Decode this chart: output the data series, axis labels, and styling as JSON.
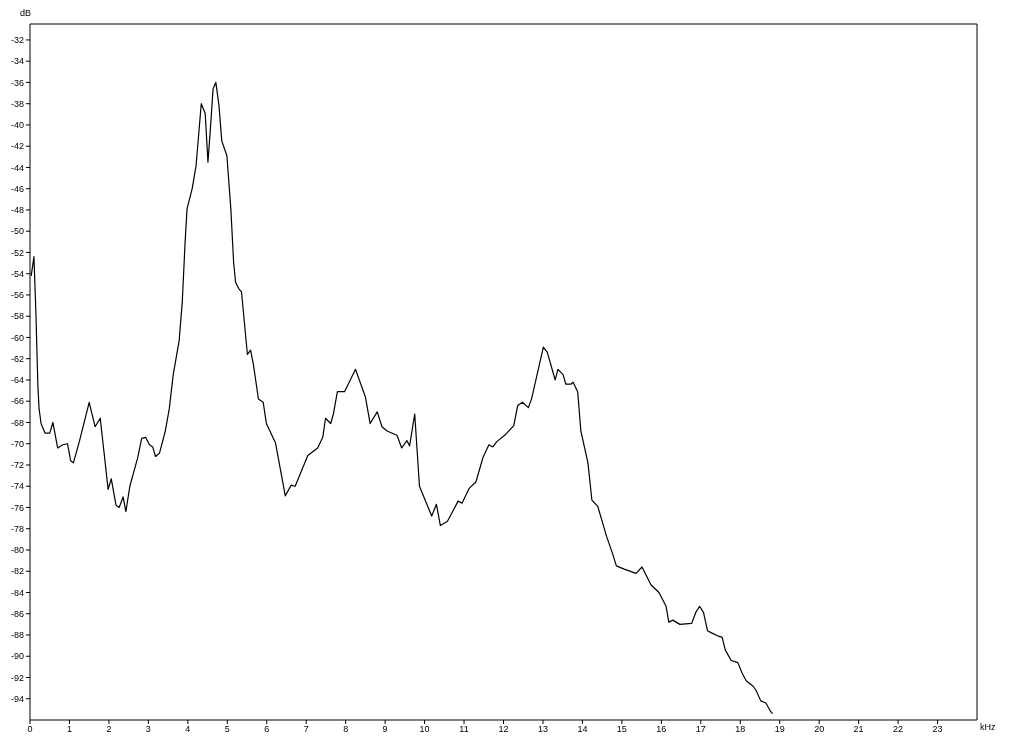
{
  "chart_data": {
    "type": "line",
    "xlabel": "kHz",
    "ylabel": "dB",
    "xlim": [
      0,
      24
    ],
    "xticks": [
      0,
      1,
      2,
      3,
      4,
      5,
      6,
      7,
      8,
      9,
      10,
      11,
      12,
      13,
      14,
      15,
      16,
      17,
      18,
      19,
      20,
      21,
      22,
      23
    ],
    "ylim": [
      -96,
      -30.5
    ],
    "yticks": [
      -94,
      -92,
      -90,
      -88,
      -86,
      -84,
      -82,
      -80,
      -78,
      -76,
      -74,
      -72,
      -70,
      -68,
      -66,
      -64,
      -62,
      -60,
      -58,
      -56,
      -54,
      -52,
      -50,
      -48,
      -46,
      -44,
      -42,
      -40,
      -38,
      -36,
      -34,
      -32
    ],
    "marker": "none",
    "line_style": "solid",
    "x": [
      0.03,
      0.1,
      0.15,
      0.2,
      0.23,
      0.28,
      0.38,
      0.5,
      0.58,
      0.7,
      0.83,
      0.95,
      1.03,
      1.1,
      1.25,
      1.5,
      1.65,
      1.78,
      1.98,
      2.06,
      2.18,
      2.26,
      2.36,
      2.43,
      2.53,
      2.73,
      2.83,
      2.93,
      3.03,
      3.11,
      3.18,
      3.28,
      3.43,
      3.53,
      3.63,
      3.78,
      3.86,
      3.93,
      3.98,
      4.11,
      4.21,
      4.34,
      4.44,
      4.51,
      4.56,
      4.64,
      4.71,
      4.79,
      4.86,
      4.99,
      5.09,
      5.16,
      5.21,
      5.29,
      5.36,
      5.51,
      5.59,
      5.66,
      5.79,
      5.91,
      5.99,
      6.22,
      6.47,
      6.62,
      6.72,
      7.04,
      7.29,
      7.42,
      7.49,
      7.62,
      7.69,
      7.79,
      7.97,
      8.25,
      8.5,
      8.62,
      8.8,
      8.92,
      9.05,
      9.3,
      9.42,
      9.55,
      9.62,
      9.75,
      9.87,
      10.18,
      10.3,
      10.4,
      10.58,
      10.85,
      10.95,
      11.13,
      11.3,
      11.48,
      11.63,
      11.73,
      11.83,
      12.06,
      12.26,
      12.36,
      12.48,
      12.63,
      12.71,
      13.01,
      13.11,
      13.31,
      13.38,
      13.51,
      13.58,
      13.71,
      13.76,
      13.88,
      13.96,
      14.14,
      14.24,
      14.39,
      14.61,
      14.76,
      14.86,
      15.06,
      15.36,
      15.51,
      15.74,
      15.94,
      16.12,
      16.19,
      16.29,
      16.47,
      16.77,
      16.87,
      16.97,
      17.07,
      17.17,
      17.27,
      17.44,
      17.54,
      17.62,
      17.77,
      17.94,
      18.05,
      18.15,
      18.32,
      18.4,
      18.52,
      18.65,
      18.77,
      18.82
    ],
    "series": [
      {
        "color": "#000000",
        "values": [
          -54.2,
          -52.4,
          -57.7,
          -64.6,
          -66.7,
          -68.1,
          -69.0,
          -69.0,
          -68.0,
          -70.4,
          -70.1,
          -70.0,
          -71.6,
          -71.8,
          -69.8,
          -66.1,
          -68.4,
          -67.6,
          -74.3,
          -73.3,
          -75.8,
          -76.0,
          -75.0,
          -76.4,
          -74.0,
          -71.3,
          -69.5,
          -69.4,
          -70.1,
          -70.3,
          -71.2,
          -70.9,
          -68.8,
          -66.7,
          -63.5,
          -60.3,
          -56.6,
          -51.1,
          -47.9,
          -46.0,
          -43.8,
          -38.0,
          -38.9,
          -43.5,
          -41.0,
          -36.6,
          -36.0,
          -38.2,
          -41.5,
          -42.9,
          -47.9,
          -52.9,
          -54.8,
          -55.4,
          -55.7,
          -61.6,
          -61.2,
          -62.5,
          -65.8,
          -66.1,
          -68.1,
          -69.9,
          -74.9,
          -73.9,
          -74.0,
          -71.1,
          -70.4,
          -69.4,
          -67.6,
          -68.1,
          -67.2,
          -65.1,
          -65.1,
          -63.0,
          -65.6,
          -68.1,
          -67.0,
          -68.4,
          -68.8,
          -69.2,
          -70.4,
          -69.7,
          -70.2,
          -67.2,
          -74.0,
          -76.8,
          -75.7,
          -77.7,
          -77.3,
          -75.4,
          -75.6,
          -74.2,
          -73.6,
          -71.3,
          -70.1,
          -70.3,
          -69.8,
          -69.1,
          -68.3,
          -66.4,
          -66.1,
          -66.6,
          -65.8,
          -60.9,
          -61.4,
          -64.0,
          -63.0,
          -63.5,
          -64.4,
          -64.4,
          -64.2,
          -65.1,
          -68.8,
          -71.8,
          -75.3,
          -75.9,
          -78.7,
          -80.3,
          -81.5,
          -81.8,
          -82.2,
          -81.6,
          -83.3,
          -84.0,
          -85.3,
          -86.8,
          -86.6,
          -87.0,
          -86.9,
          -85.9,
          -85.3,
          -85.9,
          -87.6,
          -87.8,
          -88.1,
          -88.2,
          -89.4,
          -90.4,
          -90.6,
          -91.6,
          -92.3,
          -92.8,
          -93.2,
          -94.2,
          -94.4,
          -95.2,
          -95.4
        ]
      }
    ]
  }
}
